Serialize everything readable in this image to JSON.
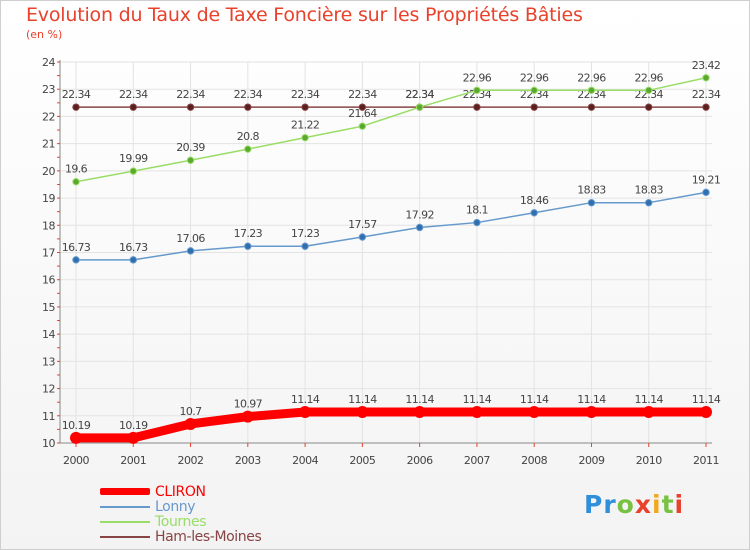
{
  "logo": {
    "text": "Proxiti"
  },
  "chart_data": {
    "type": "line",
    "title": "Evolution du Taux de Taxe Foncière sur les Propriétés Bâties",
    "subtitle": "(en %)",
    "x": [
      "2000",
      "2001",
      "2002",
      "2003",
      "2004",
      "2005",
      "2006",
      "2007",
      "2008",
      "2009",
      "2010",
      "2011"
    ],
    "ylim": [
      10,
      24
    ],
    "yticks": [
      "10",
      "11",
      "12",
      "13",
      "14",
      "15",
      "16",
      "17",
      "18",
      "19",
      "20",
      "21",
      "22",
      "23",
      "24"
    ],
    "series": [
      {
        "name": "CLIRON",
        "color": "#ff0000",
        "values": [
          10.19,
          10.19,
          10.7,
          10.97,
          11.14,
          11.14,
          11.14,
          11.14,
          11.14,
          11.14,
          11.14,
          11.14
        ],
        "labels": [
          "10.19",
          "10.19",
          "10.7",
          "10.97",
          "11.14",
          "11.14",
          "11.14",
          "11.14",
          "11.14",
          "11.14",
          "11.14",
          "11.14"
        ]
      },
      {
        "name": "Lonny",
        "color": "#6699cc",
        "values": [
          16.73,
          16.73,
          17.06,
          17.23,
          17.23,
          17.57,
          17.92,
          18.1,
          18.46,
          18.83,
          18.83,
          19.21
        ],
        "labels": [
          "16.73",
          "16.73",
          "17.06",
          "17.23",
          "17.23",
          "17.57",
          "17.92",
          "18.1",
          "18.46",
          "18.83",
          "18.83",
          "19.21"
        ]
      },
      {
        "name": "Tournes",
        "color": "#99dd66",
        "values": [
          19.6,
          19.99,
          20.39,
          20.8,
          21.22,
          21.64,
          22.34,
          22.96,
          22.96,
          22.96,
          22.96,
          23.42
        ],
        "labels": [
          "19.6",
          "19.99",
          "20.39",
          "20.8",
          "21.22",
          "21.64",
          "22.34",
          "22.96",
          "22.96",
          "22.96",
          "22.96",
          "23.42"
        ]
      },
      {
        "name": "Ham-les-Moines",
        "color": "#884444",
        "values": [
          22.34,
          22.34,
          22.34,
          22.34,
          22.34,
          22.34,
          22.34,
          22.34,
          22.34,
          22.34,
          22.34,
          22.34
        ],
        "labels": [
          "22.34",
          "22.34",
          "22.34",
          "22.34",
          "22.34",
          "22.34",
          "22.34",
          "22.34",
          "22.34",
          "22.34",
          "22.34",
          "22.34"
        ]
      }
    ]
  }
}
